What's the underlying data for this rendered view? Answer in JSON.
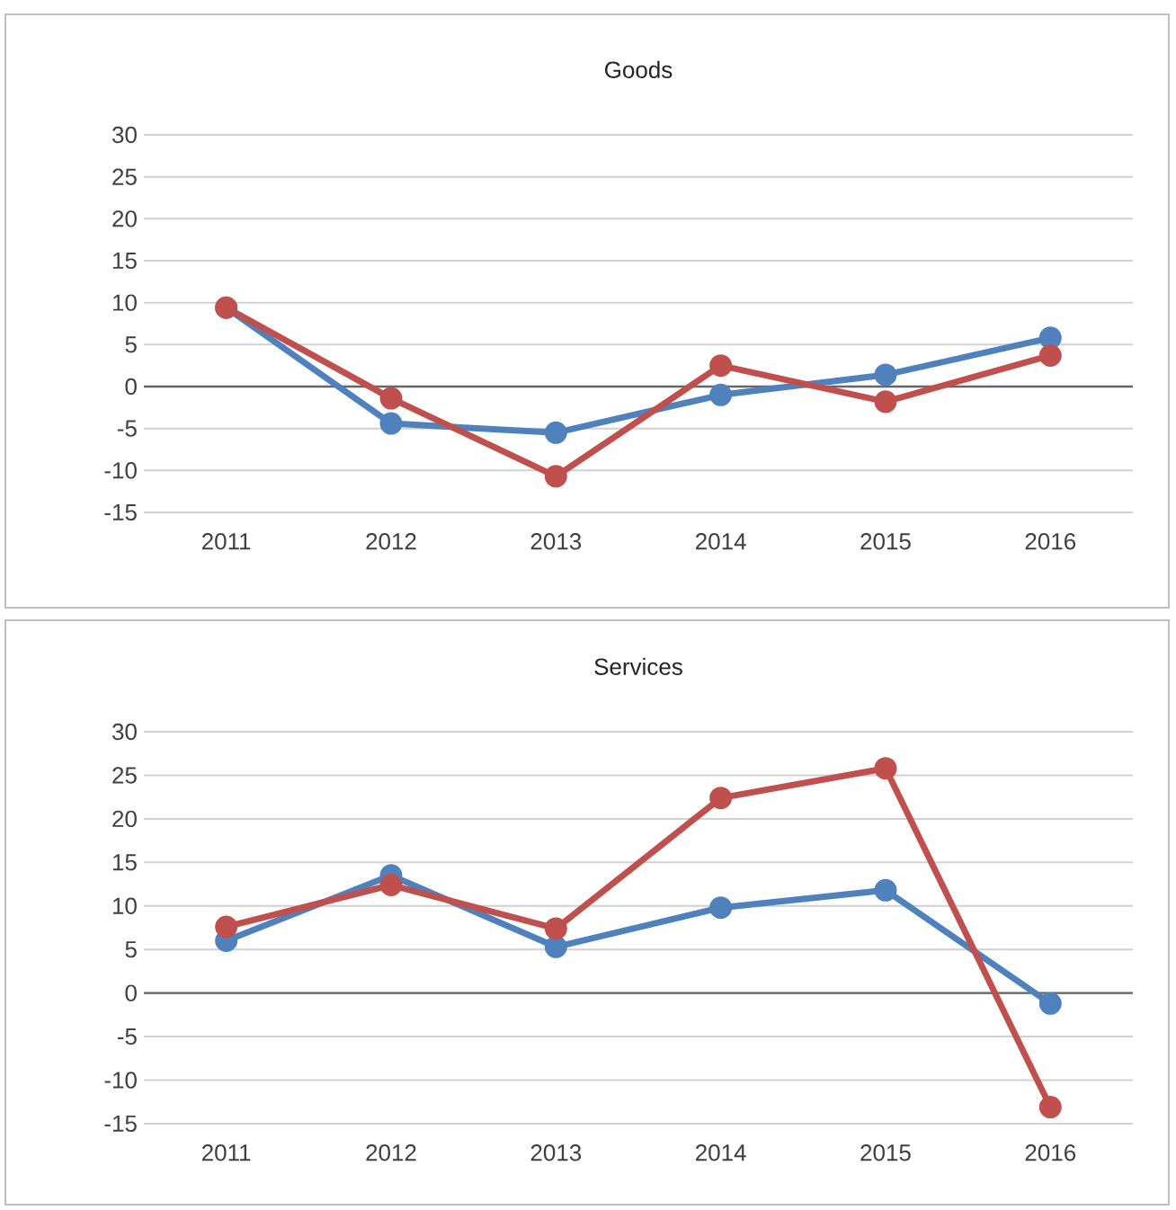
{
  "chart_data": [
    {
      "type": "line",
      "title": "Goods",
      "categories": [
        "2011",
        "2012",
        "2013",
        "2014",
        "2015",
        "2016"
      ],
      "series": [
        {
          "color": "#4f81bd",
          "values": [
            9.4,
            -4.4,
            -5.5,
            -1.0,
            1.4,
            5.8
          ]
        },
        {
          "color": "#c0504d",
          "values": [
            9.4,
            -1.4,
            -10.7,
            2.5,
            -1.8,
            3.7
          ]
        }
      ],
      "ylim": [
        -15,
        30
      ],
      "yticks": [
        -15,
        -10,
        -5,
        0,
        5,
        10,
        15,
        20,
        25,
        30
      ],
      "grid": "y",
      "marker": "circle",
      "line_style": "solid"
    },
    {
      "type": "line",
      "title": "Services",
      "categories": [
        "2011",
        "2012",
        "2013",
        "2014",
        "2015",
        "2016"
      ],
      "series": [
        {
          "color": "#4f81bd",
          "values": [
            6.0,
            13.5,
            5.3,
            9.8,
            11.8,
            -1.2
          ]
        },
        {
          "color": "#c0504d",
          "values": [
            7.6,
            12.4,
            7.4,
            22.4,
            25.8,
            -13.1
          ]
        }
      ],
      "ylim": [
        -15,
        30
      ],
      "yticks": [
        -15,
        -10,
        -5,
        0,
        5,
        10,
        15,
        20,
        25,
        30
      ],
      "grid": "y",
      "marker": "circle",
      "line_style": "solid"
    }
  ]
}
